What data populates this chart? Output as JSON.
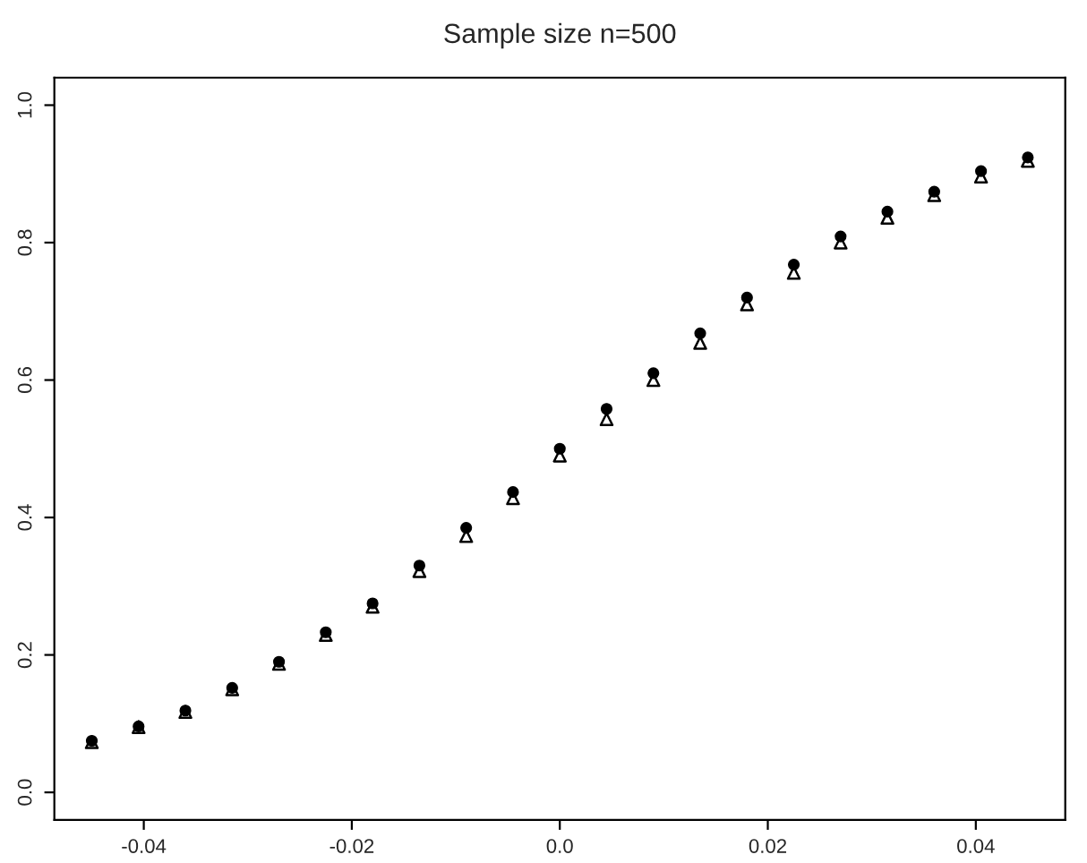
{
  "chart_data": {
    "type": "scatter",
    "title": "Sample size n=500",
    "x": [
      -0.045,
      -0.0405,
      -0.036,
      -0.0315,
      -0.027,
      -0.0225,
      -0.018,
      -0.0135,
      -0.009,
      -0.0045,
      0.0,
      0.0045,
      0.009,
      0.0135,
      0.018,
      0.0225,
      0.027,
      0.0315,
      0.036,
      0.0405,
      0.045
    ],
    "series": [
      {
        "color": "#000000",
        "marker": "circle",
        "values": [
          0.075,
          0.096,
          0.119,
          0.152,
          0.19,
          0.233,
          0.275,
          0.33,
          0.385,
          0.437,
          0.5,
          0.558,
          0.61,
          0.668,
          0.72,
          0.768,
          0.809,
          0.845,
          0.874,
          0.904,
          0.924
        ]
      },
      {
        "color": "#000000",
        "marker": "triangle",
        "values": [
          0.073,
          0.095,
          0.117,
          0.15,
          0.187,
          0.229,
          0.27,
          0.322,
          0.373,
          0.428,
          0.49,
          0.543,
          0.6,
          0.654,
          0.71,
          0.756,
          0.8,
          0.836,
          0.869,
          0.896,
          0.919
        ]
      }
    ],
    "xlim": [
      -0.0486,
      0.0486
    ],
    "ylim": [
      -0.04,
      1.04
    ],
    "xticks": [
      -0.04,
      -0.02,
      {
        "value": 0,
        "label": "0.0"
      },
      0.02,
      0.04
    ],
    "yticks": [
      {
        "value": 0,
        "label": "0.0"
      },
      0.2,
      0.4,
      0.6,
      0.8,
      {
        "value": 1,
        "label": "1.0"
      }
    ],
    "grid": false,
    "legend": false
  }
}
